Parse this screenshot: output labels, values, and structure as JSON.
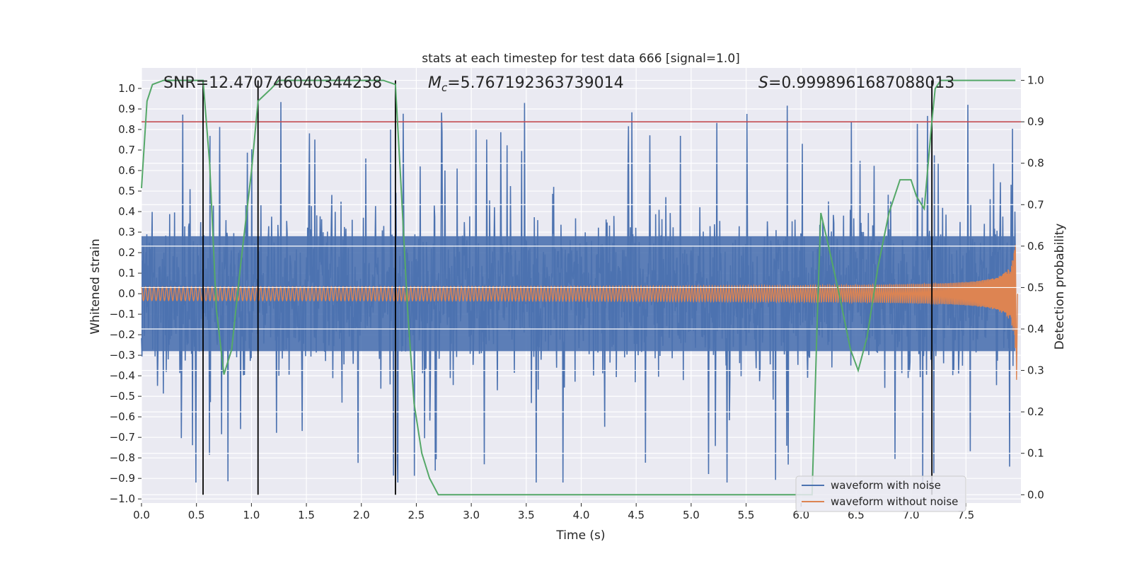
{
  "chart_data": {
    "type": "line",
    "title": "stats at each timestep for test data 666 [signal=1.0]",
    "xlabel": "Time (s)",
    "ylabel_left": "Whitened strain",
    "ylabel_right": "Detection probability",
    "xlim": [
      0.0,
      8.0
    ],
    "ylim_left": [
      -1.02,
      1.1
    ],
    "ylim_right": [
      -0.02,
      1.03
    ],
    "x_ticks": [
      "0.0",
      "0.5",
      "1.0",
      "1.5",
      "2.0",
      "2.5",
      "3.0",
      "3.5",
      "4.0",
      "4.5",
      "5.0",
      "5.5",
      "6.0",
      "6.5",
      "7.0",
      "7.5"
    ],
    "y_ticks_left": [
      "1.0",
      "0.9",
      "0.8",
      "0.7",
      "0.6",
      "0.5",
      "0.4",
      "0.3",
      "0.2",
      "0.1",
      "0.0",
      "−0.1",
      "−0.2",
      "−0.3",
      "−0.4",
      "−0.5",
      "−0.6",
      "−0.7",
      "−0.8",
      "−0.9",
      "−1.0"
    ],
    "y_ticks_right": [
      "1.0",
      "0.9",
      "0.8",
      "0.7",
      "0.6",
      "0.5",
      "0.4",
      "0.3",
      "0.2",
      "0.1",
      "0.0"
    ],
    "annotations": {
      "snr": "SNR=12.470746040344238",
      "mc_symbol": "M",
      "mc_sub": "c",
      "mc_value": "=5.767192363739014",
      "s_symbol": "S",
      "s_value": "=0.9998961687088013"
    },
    "threshold_right": 0.9,
    "threshold_color": "#c44e52",
    "vertical_lines_x": [
      0.56,
      1.06,
      2.31,
      7.19
    ],
    "vertical_lines_right_range": [
      0.0,
      1.0
    ],
    "noise_series": {
      "name": "waveform with noise",
      "color": "#4c72b0",
      "x_range": [
        0.0,
        7.95
      ],
      "envelope": [
        0.3,
        0.4
      ],
      "peak_max": 1.0,
      "peak_min": -0.92
    },
    "signal_series": {
      "name": "waveform without noise",
      "color": "#dd8452",
      "x_range": [
        0.0,
        7.95
      ],
      "amplitude_start": 0.03,
      "amplitude_end": 0.28,
      "final_dip": -0.42
    },
    "probability_series": {
      "color": "#55a868",
      "x": [
        0.0,
        0.05,
        0.1,
        0.2,
        0.3,
        0.4,
        0.5,
        0.56,
        0.62,
        0.68,
        0.75,
        0.82,
        0.9,
        1.0,
        1.06,
        1.1,
        1.18,
        1.25,
        1.35,
        1.5,
        2.0,
        2.2,
        2.31,
        2.36,
        2.42,
        2.48,
        2.55,
        2.62,
        2.7,
        2.8,
        3.0,
        3.5,
        4.0,
        4.5,
        5.0,
        5.3,
        5.5,
        5.56,
        5.7,
        5.85,
        6.0,
        6.1,
        6.15,
        6.18,
        6.25,
        6.35,
        6.45,
        6.52,
        6.6,
        6.7,
        6.8,
        6.9,
        7.0,
        7.05,
        7.12,
        7.19,
        7.22,
        7.27,
        7.35,
        7.5,
        7.7,
        7.95
      ],
      "y": [
        0.74,
        0.95,
        0.99,
        1.0,
        1.0,
        1.0,
        1.0,
        1.0,
        0.8,
        0.45,
        0.29,
        0.35,
        0.55,
        0.78,
        0.95,
        0.96,
        0.98,
        1.0,
        1.0,
        1.0,
        1.0,
        1.0,
        0.99,
        0.75,
        0.45,
        0.22,
        0.1,
        0.04,
        0.0,
        0.0,
        0.0,
        0.0,
        0.0,
        0.0,
        0.0,
        0.0,
        0.0,
        0.0,
        0.0,
        0.0,
        0.0,
        0.0,
        0.45,
        0.68,
        0.6,
        0.48,
        0.35,
        0.3,
        0.38,
        0.55,
        0.68,
        0.76,
        0.76,
        0.72,
        0.69,
        0.9,
        0.98,
        1.0,
        1.0,
        1.0,
        1.0,
        1.0
      ]
    },
    "legend_position": "lower-right",
    "grid": true,
    "colors": {
      "plot_bg": "#eaeaf2",
      "grid": "#ffffff",
      "vline": "#000000"
    }
  }
}
